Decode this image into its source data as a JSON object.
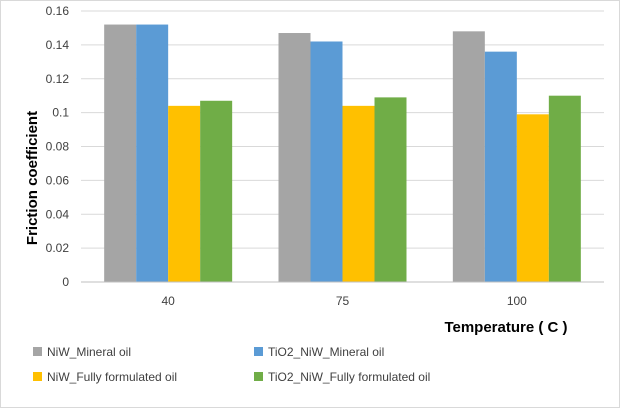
{
  "chart_data": {
    "type": "bar",
    "categories": [
      "40",
      "75",
      "100"
    ],
    "series": [
      {
        "name": "NiW_Mineral oil",
        "color": "#a5a5a5",
        "values": [
          0.152,
          0.147,
          0.148
        ]
      },
      {
        "name": "TiO2_NiW_Mineral oil",
        "color": "#5b9bd5",
        "values": [
          0.152,
          0.142,
          0.136
        ]
      },
      {
        "name": "NiW_Fully formulated oil",
        "color": "#ffc000",
        "values": [
          0.104,
          0.104,
          0.099
        ]
      },
      {
        "name": "TiO2_NiW_Fully formulated oil",
        "color": "#70ad47",
        "values": [
          0.107,
          0.109,
          0.11
        ]
      }
    ],
    "xlabel": "Temperature ( C )",
    "ylabel": "Friction coefficient",
    "ylim": [
      0,
      0.16
    ],
    "yticks": [
      "0",
      "0.02",
      "0.04",
      "0.06",
      "0.08",
      "0.1",
      "0.12",
      "0.14",
      "0.16"
    ],
    "grid": true,
    "legend_position": "bottom"
  }
}
